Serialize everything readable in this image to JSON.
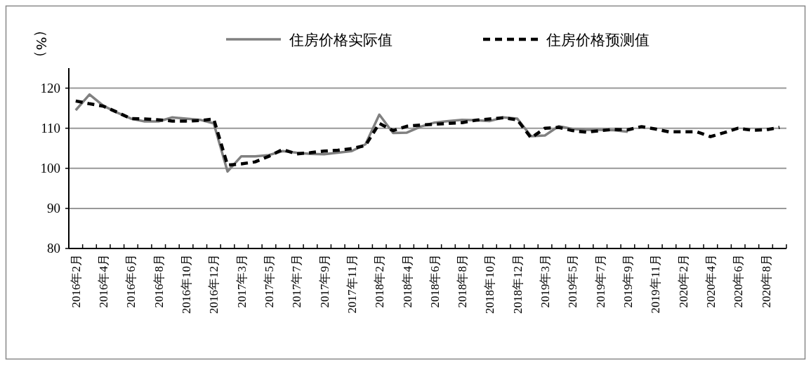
{
  "chart_data": {
    "type": "line",
    "ylabel": "（%）",
    "categories": [
      "2016年2月",
      null,
      "2016年4月",
      null,
      "2016年6月",
      null,
      "2016年8月",
      null,
      "2016年10月",
      null,
      "2016年12月",
      null,
      "2017年3月",
      null,
      "2017年5月",
      null,
      "2017年7月",
      null,
      "2017年9月",
      null,
      "2017年11月",
      null,
      "2018年2月",
      null,
      "2018年4月",
      null,
      "2018年6月",
      null,
      "2018年8月",
      null,
      "2018年10月",
      null,
      "2018年12月",
      null,
      "2019年3月",
      null,
      "2019年5月",
      null,
      "2019年7月",
      null,
      "2019年9月",
      null,
      "2019年11月",
      null,
      "2020年2月",
      null,
      "2020年4月",
      null,
      "2020年6月",
      null,
      "2020年8月",
      null
    ],
    "series": [
      {
        "name": "住房价格实际值",
        "color": "#808080",
        "line_style": "solid",
        "values": [
          114.5,
          118.4,
          115.6,
          113.9,
          112.4,
          111.7,
          111.7,
          112.7,
          112.4,
          112.1,
          111.2,
          99.2,
          103.0,
          103.0,
          103.3,
          104.3,
          103.9,
          103.6,
          103.5,
          103.9,
          104.3,
          106.0,
          113.4,
          108.8,
          108.9,
          110.4,
          111.4,
          111.8,
          112.1,
          112.0,
          111.8,
          112.7,
          112.4,
          108.0,
          108.2,
          110.5,
          109.8,
          109.6,
          109.6,
          109.5,
          109.1,
          null,
          null,
          null,
          null,
          null,
          null,
          null,
          null,
          null,
          null,
          null
        ]
      },
      {
        "name": "住房价格预测值",
        "color": "#000000",
        "line_style": "dashed",
        "values": [
          116.8,
          116.1,
          115.5,
          114.0,
          112.4,
          112.3,
          112.1,
          111.8,
          111.8,
          111.9,
          112.3,
          100.8,
          101.1,
          101.6,
          103.0,
          104.7,
          103.6,
          103.9,
          104.3,
          104.5,
          104.9,
          105.7,
          111.2,
          109.4,
          110.5,
          110.8,
          111.0,
          111.2,
          111.4,
          112.0,
          112.3,
          112.6,
          112.1,
          107.6,
          110.0,
          110.2,
          109.4,
          109.0,
          109.4,
          109.7,
          109.6,
          110.4,
          109.8,
          109.1,
          109.1,
          109.1,
          107.9,
          108.9,
          110.0,
          109.5,
          109.6,
          110.2
        ]
      }
    ],
    "ylim": [
      80,
      125
    ],
    "yticks": [
      80,
      90,
      100,
      110,
      120
    ],
    "grid": "y",
    "legend": "top",
    "marker": "none"
  }
}
